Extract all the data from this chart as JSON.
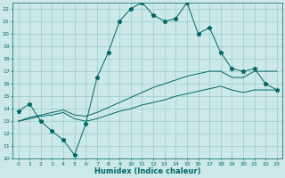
{
  "xlabel": "Humidex (Indice chaleur)",
  "x": [
    0,
    1,
    2,
    3,
    4,
    5,
    6,
    7,
    8,
    9,
    10,
    11,
    12,
    13,
    14,
    15,
    16,
    17,
    18,
    19,
    20,
    21,
    22,
    23
  ],
  "y_main": [
    13.8,
    14.4,
    13.0,
    12.2,
    11.5,
    10.3,
    12.8,
    16.5,
    18.5,
    21.0,
    22.0,
    22.5,
    21.5,
    21.0,
    21.2,
    22.5,
    20.0,
    20.5,
    18.5,
    17.2,
    17.0,
    17.2,
    16.0,
    15.5
  ],
  "y_reg1": [
    13.0,
    13.2,
    13.4,
    13.5,
    13.7,
    13.2,
    13.0,
    13.2,
    13.5,
    13.8,
    14.0,
    14.3,
    14.5,
    14.7,
    15.0,
    15.2,
    15.4,
    15.6,
    15.8,
    15.5,
    15.3,
    15.5,
    15.5,
    15.5
  ],
  "y_reg2": [
    13.0,
    13.3,
    13.5,
    13.7,
    13.9,
    13.5,
    13.4,
    13.7,
    14.1,
    14.5,
    14.9,
    15.3,
    15.7,
    16.0,
    16.3,
    16.6,
    16.8,
    17.0,
    17.0,
    16.5,
    16.5,
    17.0,
    17.0,
    17.0
  ],
  "ylim": [
    10,
    22.5
  ],
  "yticks": [
    10,
    11,
    12,
    13,
    14,
    15,
    16,
    17,
    18,
    19,
    20,
    21,
    22
  ],
  "bg_color": "#cce8e8",
  "grid_color": "#99cccc",
  "line_color": "#006666",
  "marker": "*",
  "marker_size": 3.5
}
